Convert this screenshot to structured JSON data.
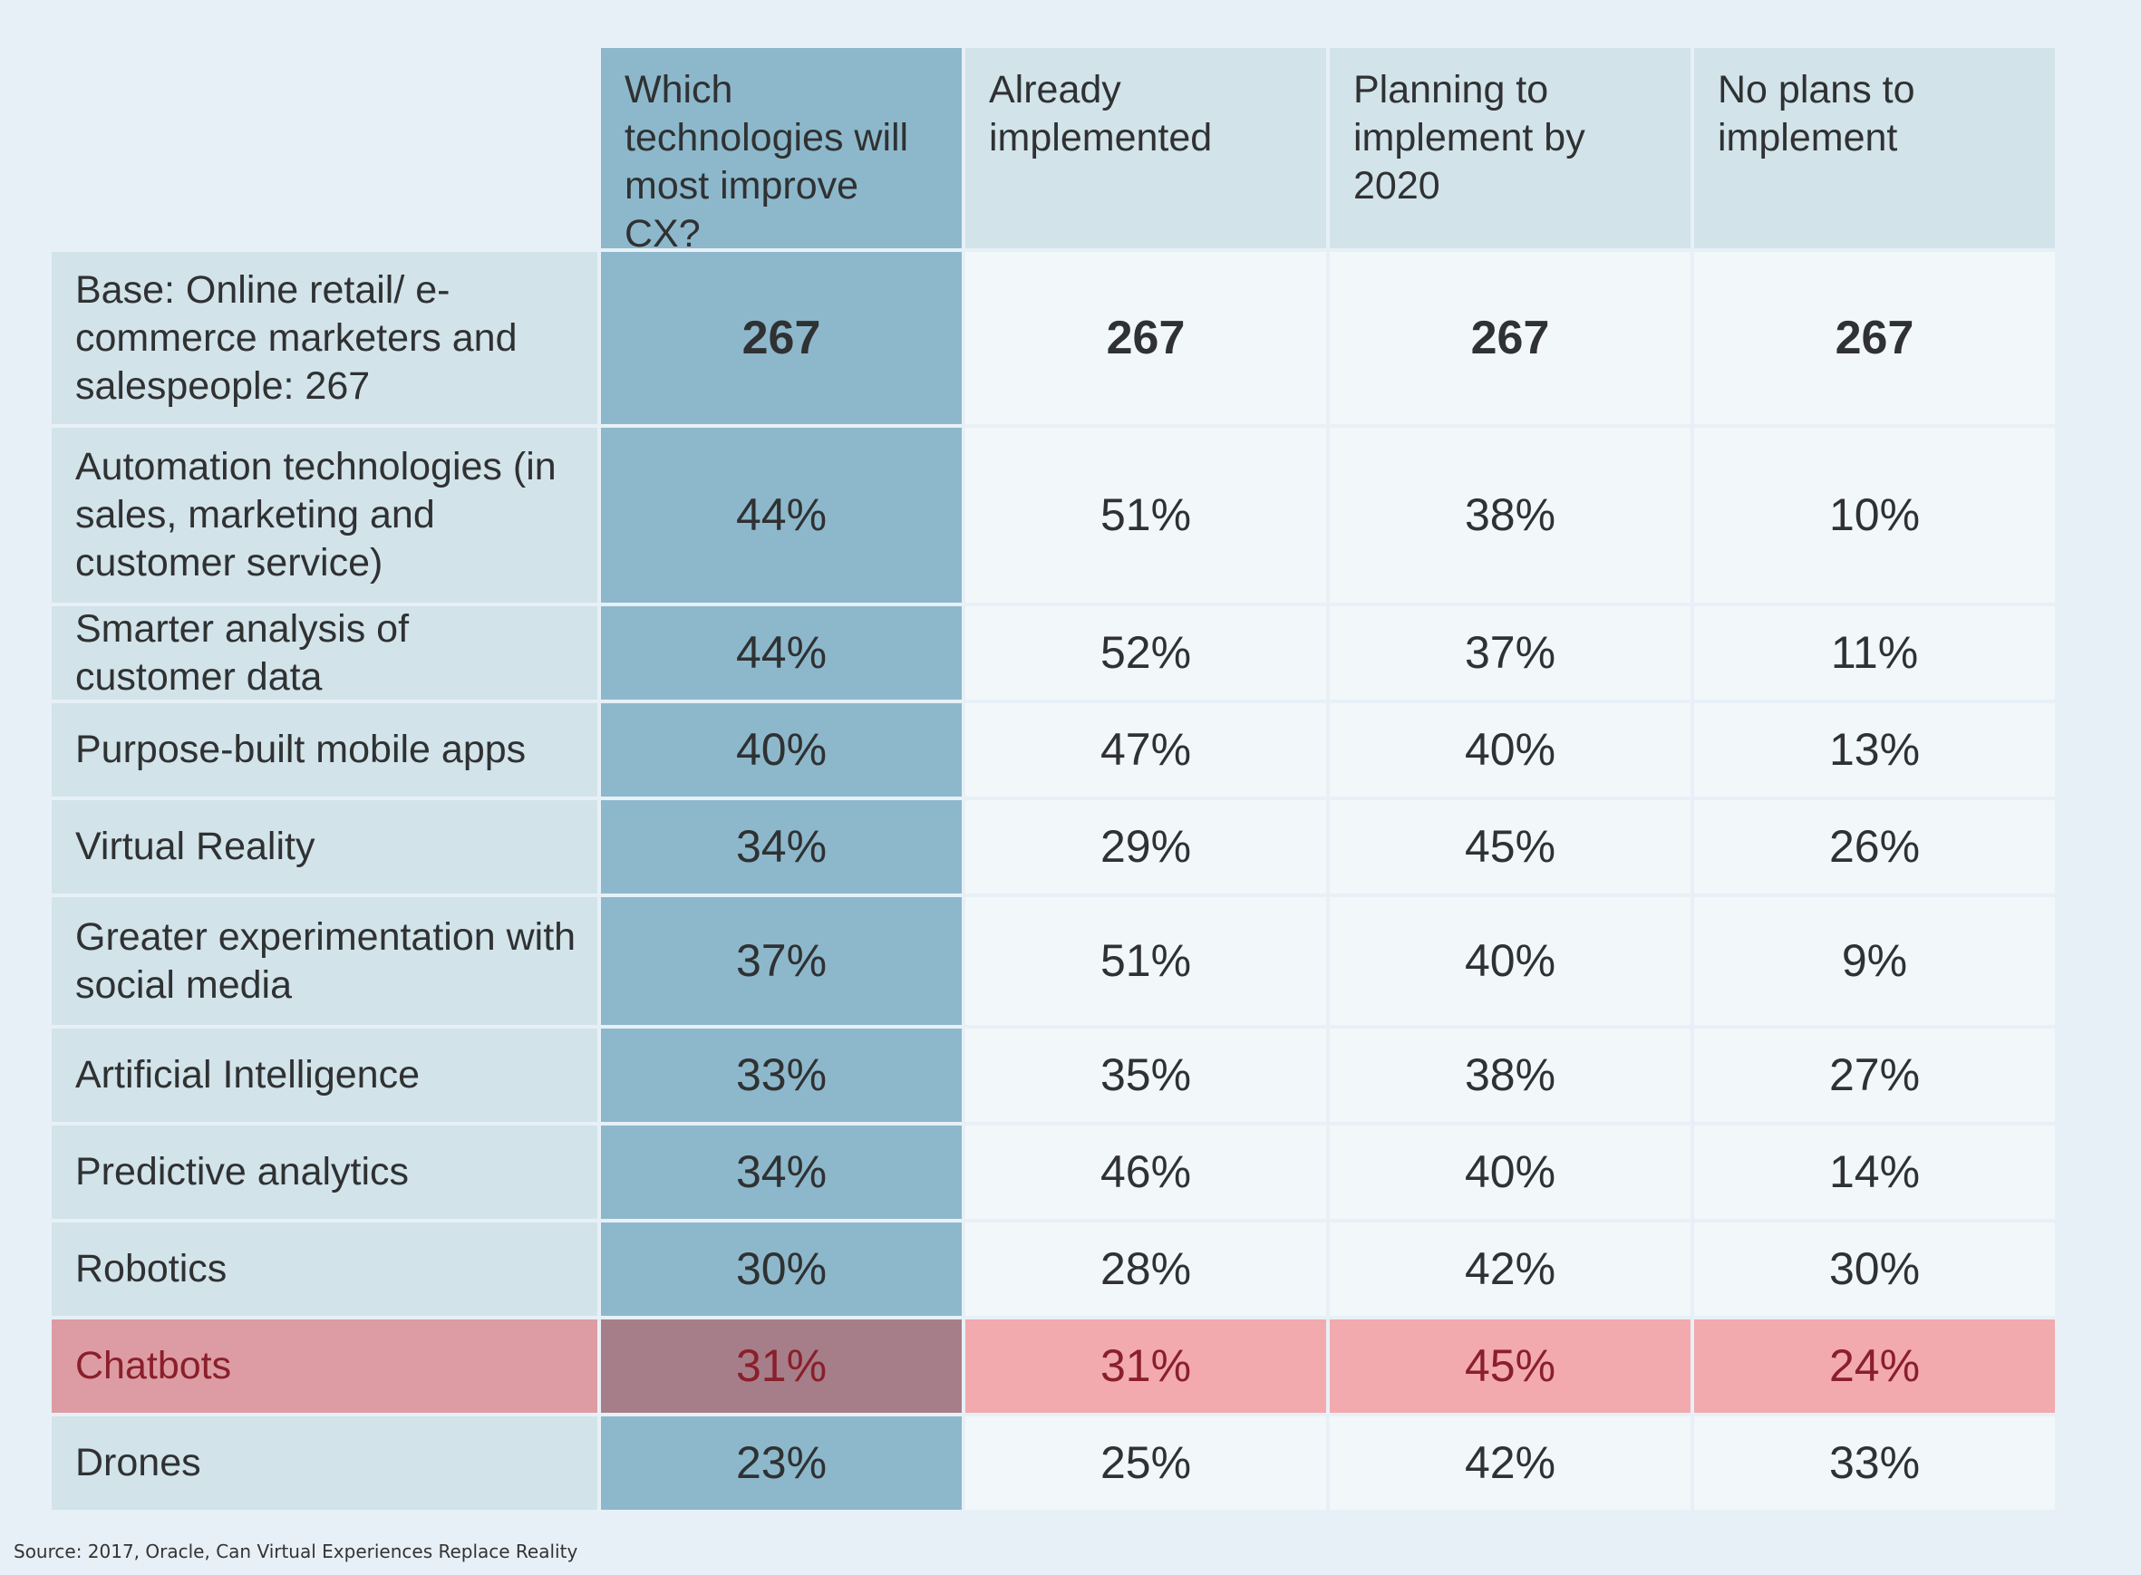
{
  "chart_data": {
    "type": "table",
    "columns": [
      "Which technologies will most improve CX?",
      "Already implemented",
      "Planning to implement by 2020",
      "No plans to implement"
    ],
    "base": {
      "label": "Base: Online retail/ e-commerce marketers and salespeople: 267",
      "values": [
        "267",
        "267",
        "267",
        "267"
      ]
    },
    "rows": [
      {
        "label": "Automation technologies (in sales, marketing and customer service)",
        "values": [
          "44%",
          "51%",
          "38%",
          "10%"
        ]
      },
      {
        "label": "Smarter analysis of customer data",
        "values": [
          "44%",
          "52%",
          "37%",
          "11%"
        ]
      },
      {
        "label": "Purpose-built mobile apps",
        "values": [
          "40%",
          "47%",
          "40%",
          "13%"
        ]
      },
      {
        "label": "Virtual Reality",
        "values": [
          "34%",
          "29%",
          "45%",
          "26%"
        ]
      },
      {
        "label": "Greater experimentation with social media",
        "values": [
          "37%",
          "51%",
          "40%",
          "9%"
        ]
      },
      {
        "label": "Artificial Intelligence",
        "values": [
          "33%",
          "35%",
          "38%",
          "27%"
        ]
      },
      {
        "label": "Predictive analytics",
        "values": [
          "34%",
          "46%",
          "40%",
          "14%"
        ]
      },
      {
        "label": "Robotics",
        "values": [
          "30%",
          "28%",
          "42%",
          "30%"
        ]
      },
      {
        "label": "Chatbots",
        "values": [
          "31%",
          "31%",
          "45%",
          "24%"
        ],
        "highlighted": true
      },
      {
        "label": "Drones",
        "values": [
          "23%",
          "25%",
          "42%",
          "33%"
        ]
      }
    ]
  },
  "source": "Source: 2017, Oracle, Can Virtual Experiences Replace Reality",
  "colors": {
    "label_bg": "#d2e3ea",
    "question_column_bg": "#8db8cb",
    "value_bg": "#f2f7fa",
    "highlight_bg": "#f2aaae",
    "highlight_text": "#8a1f2b",
    "page_bg": "#e8f0f7"
  }
}
